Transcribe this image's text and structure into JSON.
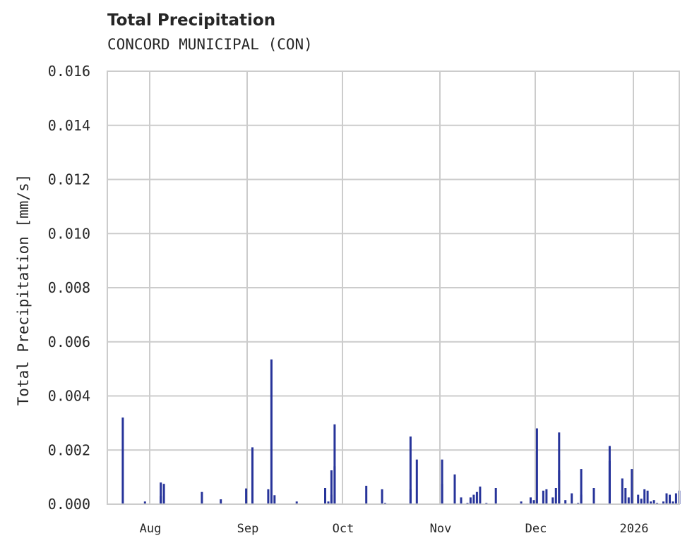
{
  "header": {
    "title": "Total Precipitation",
    "subtitle": "CONCORD MUNICIPAL (CON)"
  },
  "colors": {
    "bar": "#27349a",
    "grid": "#cccccc",
    "text": "#262626"
  },
  "chart_data": {
    "type": "bar",
    "title": "Total Precipitation",
    "subtitle": "CONCORD MUNICIPAL (CON)",
    "xlabel": "",
    "ylabel": "Total Precipitation [mm/s]",
    "ylim": [
      0,
      0.016
    ],
    "yticks": [
      "0.000",
      "0.002",
      "0.004",
      "0.006",
      "0.008",
      "0.010",
      "0.012",
      "0.014",
      "0.016"
    ],
    "xticks": [
      "Aug",
      "Sep",
      "Oct",
      "Nov",
      "Dec",
      "2026"
    ],
    "xrange": [
      "2025-07-20",
      "2026-01-16"
    ],
    "grid": true,
    "legend": null,
    "series": [
      {
        "name": "Total Precipitation",
        "points": [
          {
            "x": "2025-07-23",
            "y": 0.0032
          },
          {
            "x": "2025-07-30",
            "y": 0.0001
          },
          {
            "x": "2025-08-04",
            "y": 0.0003
          },
          {
            "x": "2025-08-04",
            "y": 0.0008
          },
          {
            "x": "2025-08-05",
            "y": 0.00075
          },
          {
            "x": "2025-08-17",
            "y": 0.00045
          },
          {
            "x": "2025-08-23",
            "y": 0.00018
          },
          {
            "x": "2025-08-31",
            "y": 0.00058
          },
          {
            "x": "2025-09-02",
            "y": 0.0021
          },
          {
            "x": "2025-09-02",
            "y": 0.00175
          },
          {
            "x": "2025-09-07",
            "y": 0.00055
          },
          {
            "x": "2025-09-08",
            "y": 0.00535
          },
          {
            "x": "2025-09-09",
            "y": 0.00033
          },
          {
            "x": "2025-09-16",
            "y": 0.0001
          },
          {
            "x": "2025-09-25",
            "y": 0.0006
          },
          {
            "x": "2025-09-26",
            "y": 0.0001
          },
          {
            "x": "2025-09-27",
            "y": 0.00035
          },
          {
            "x": "2025-09-27",
            "y": 0.00125
          },
          {
            "x": "2025-09-28",
            "y": 0.00295
          },
          {
            "x": "2025-09-28",
            "y": 0.0014
          },
          {
            "x": "2025-10-08",
            "y": 0.00068
          },
          {
            "x": "2025-10-13",
            "y": 0.00055
          },
          {
            "x": "2025-10-14",
            "y": 5e-05
          },
          {
            "x": "2025-10-22",
            "y": 0.0025
          },
          {
            "x": "2025-10-22",
            "y": 0.00055
          },
          {
            "x": "2025-10-24",
            "y": 0.00165
          },
          {
            "x": "2025-11-01",
            "y": 0.00165
          },
          {
            "x": "2025-11-01",
            "y": 0.00075
          },
          {
            "x": "2025-11-05",
            "y": 0.0011
          },
          {
            "x": "2025-11-07",
            "y": 0.00025
          },
          {
            "x": "2025-11-09",
            "y": 5e-05
          },
          {
            "x": "2025-11-10",
            "y": 0.00025
          },
          {
            "x": "2025-11-11",
            "y": 0.00035
          },
          {
            "x": "2025-11-12",
            "y": 0.00045
          },
          {
            "x": "2025-11-13",
            "y": 0.00065
          },
          {
            "x": "2025-11-15",
            "y": 5e-05
          },
          {
            "x": "2025-11-18",
            "y": 0.0006
          },
          {
            "x": "2025-11-26",
            "y": 0.0001
          },
          {
            "x": "2025-11-29",
            "y": 0.00025
          },
          {
            "x": "2025-11-30",
            "y": 0.00015
          },
          {
            "x": "2025-12-01",
            "y": 0.0028
          },
          {
            "x": "2025-12-03",
            "y": 0.0005
          },
          {
            "x": "2025-12-04",
            "y": 0.00055
          },
          {
            "x": "2025-12-06",
            "y": 0.00025
          },
          {
            "x": "2025-12-07",
            "y": 0.0006
          },
          {
            "x": "2025-12-08",
            "y": 0.00265
          },
          {
            "x": "2025-12-08",
            "y": 0.00125
          },
          {
            "x": "2025-12-10",
            "y": 0.00015
          },
          {
            "x": "2025-12-12",
            "y": 0.0004
          },
          {
            "x": "2025-12-14",
            "y": 5e-05
          },
          {
            "x": "2025-12-15",
            "y": 0.0013
          },
          {
            "x": "2025-12-15",
            "y": 0.00035
          },
          {
            "x": "2025-12-19",
            "y": 0.0006
          },
          {
            "x": "2025-12-24",
            "y": 0.0016
          },
          {
            "x": "2025-12-24",
            "y": 0.00215
          },
          {
            "x": "2025-12-28",
            "y": 0.00095
          },
          {
            "x": "2025-12-29",
            "y": 0.0006
          },
          {
            "x": "2025-12-30",
            "y": 0.00025
          },
          {
            "x": "2025-12-31",
            "y": 0.0013
          },
          {
            "x": "2026-01-02",
            "y": 0.00035
          },
          {
            "x": "2026-01-03",
            "y": 0.0002
          },
          {
            "x": "2026-01-04",
            "y": 0.00055
          },
          {
            "x": "2026-01-05",
            "y": 0.0005
          },
          {
            "x": "2026-01-06",
            "y": 0.0001
          },
          {
            "x": "2026-01-07",
            "y": 0.00015
          },
          {
            "x": "2026-01-08",
            "y": 5e-05
          },
          {
            "x": "2026-01-10",
            "y": 0.0001
          },
          {
            "x": "2026-01-11",
            "y": 0.0004
          },
          {
            "x": "2026-01-12",
            "y": 0.00035
          },
          {
            "x": "2026-01-13",
            "y": 0.0001
          },
          {
            "x": "2026-01-14",
            "y": 0.0004
          },
          {
            "x": "2026-01-15",
            "y": 0.0005
          },
          {
            "x": "2026-01-16",
            "y": 0.0004
          }
        ]
      }
    ]
  }
}
